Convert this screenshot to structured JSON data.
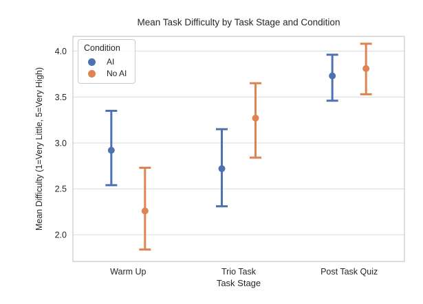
{
  "figure": {
    "title": "Mean Task Difficulty by Task Stage and Condition",
    "xlabel": "Task Stage",
    "ylabel": "Mean Difficulty (1=Very Little, 5=Very High)"
  },
  "legend": {
    "title": "Condition",
    "items": [
      {
        "label": "AI",
        "color": "#4C72B0"
      },
      {
        "label": "No AI",
        "color": "#DD8452"
      }
    ]
  },
  "colors": {
    "ai": "#4C72B0",
    "no_ai": "#DD8452",
    "grid": "#dcdcdc",
    "spine": "#c8c8c8",
    "text": "#262626"
  },
  "chart_data": {
    "type": "scatter",
    "subtype": "point-plot-with-error-bars",
    "title": "Mean Task Difficulty by Task Stage and Condition",
    "xlabel": "Task Stage",
    "ylabel": "Mean Difficulty (1=Very Little, 5=Very High)",
    "categories": [
      "Warm Up",
      "Trio Task",
      "Post Task Quiz"
    ],
    "series": [
      {
        "name": "AI",
        "color": "#4C72B0",
        "means": [
          2.92,
          2.72,
          3.73
        ],
        "ci_low": [
          2.54,
          2.31,
          3.46
        ],
        "ci_high": [
          3.35,
          3.15,
          3.96
        ]
      },
      {
        "name": "No AI",
        "color": "#DD8452",
        "means": [
          2.26,
          3.27,
          3.81
        ],
        "ci_low": [
          1.84,
          2.84,
          3.53
        ],
        "ci_high": [
          2.73,
          3.65,
          4.08
        ]
      }
    ],
    "ylim": [
      1.71,
      4.16
    ],
    "yticks": [
      "2.0",
      "2.5",
      "3.0",
      "3.5",
      "4.0"
    ],
    "grid": true,
    "legend_title": "Condition",
    "legend_position": "upper left"
  }
}
